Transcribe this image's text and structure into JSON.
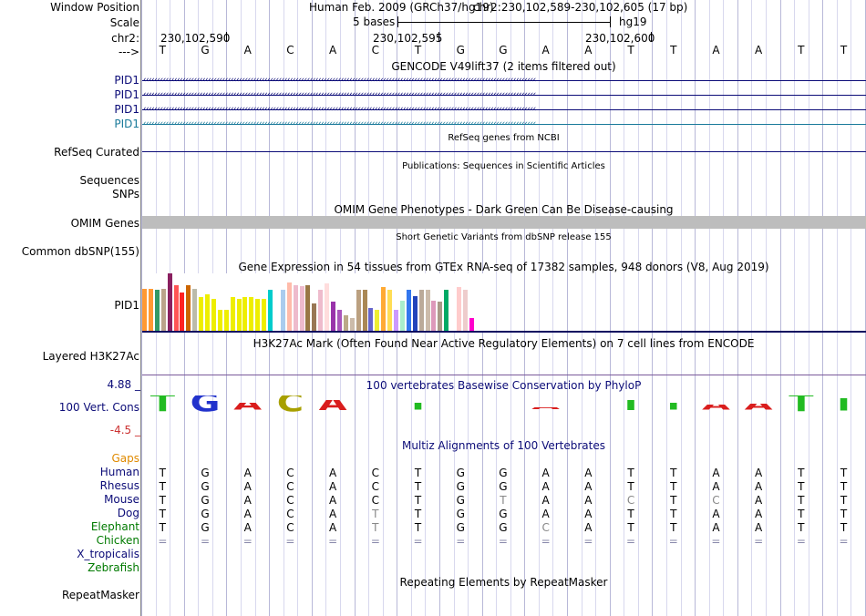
{
  "header": {
    "labels": {
      "window_position": "Window Position",
      "scale": "Scale",
      "chrom": "chr2:",
      "strand_arrow": "--->"
    },
    "assembly": "Human Feb. 2009 (GRCh37/hg19)",
    "position": "chr2:230,102,589-230,102,605 (17 bp)",
    "scale_text": "5 bases",
    "db": "hg19",
    "coords": [
      "230,102,590",
      "230,102,595",
      "230,102,600"
    ]
  },
  "sequence": [
    "T",
    "G",
    "A",
    "C",
    "A",
    "C",
    "T",
    "G",
    "G",
    "A",
    "A",
    "T",
    "T",
    "A",
    "A",
    "T",
    "T"
  ],
  "gencode": {
    "title": "GENCODE V49lift37 (2 items filtered out)",
    "items": [
      {
        "label": "PID1",
        "color": "#0c0c78"
      },
      {
        "label": "PID1",
        "color": "#0c0c78"
      },
      {
        "label": "PID1",
        "color": "#0c0c78"
      },
      {
        "label": "PID1",
        "color": "#1a7a9a"
      }
    ]
  },
  "refseq": {
    "center": "RefSeq genes from NCBI",
    "label": "RefSeq Curated",
    "color": "#0c0c78"
  },
  "publications": {
    "center": "Publications: Sequences in Scientific Articles",
    "label1": "Sequences",
    "label2": "SNPs"
  },
  "omim": {
    "title": "OMIM Gene Phenotypes - Dark Green Can Be Disease-causing",
    "label": "OMIM Genes",
    "color": "#007a00"
  },
  "dbsnp": {
    "center": "Short Genetic Variants from dbSNP release 155",
    "label": "Common dbSNP(155)"
  },
  "gtex": {
    "title": "Gene Expression in 54 tissues from GTEx RNA-seq of 17382 samples, 948 donors (V8, Aug 2019)",
    "label": "PID1",
    "bars": [
      {
        "v": 0.73,
        "c": "#ff9933"
      },
      {
        "v": 0.73,
        "c": "#ff9933"
      },
      {
        "v": 0.71,
        "c": "#339966"
      },
      {
        "v": 0.73,
        "c": "#bba38a"
      },
      {
        "v": 1.0,
        "c": "#8a2060"
      },
      {
        "v": 0.8,
        "c": "#ff5555"
      },
      {
        "v": 0.67,
        "c": "#ff2222"
      },
      {
        "v": 0.8,
        "c": "#cc6600"
      },
      {
        "v": 0.73,
        "c": "#bbbbaa"
      },
      {
        "v": 0.59,
        "c": "#eeee00"
      },
      {
        "v": 0.63,
        "c": "#eeee00"
      },
      {
        "v": 0.56,
        "c": "#eeee00"
      },
      {
        "v": 0.36,
        "c": "#eeee00"
      },
      {
        "v": 0.36,
        "c": "#eeee00"
      },
      {
        "v": 0.59,
        "c": "#eeee00"
      },
      {
        "v": 0.56,
        "c": "#eeee00"
      },
      {
        "v": 0.59,
        "c": "#eeee00"
      },
      {
        "v": 0.59,
        "c": "#eeee00"
      },
      {
        "v": 0.56,
        "c": "#eeee00"
      },
      {
        "v": 0.56,
        "c": "#eeee00"
      },
      {
        "v": 0.71,
        "c": "#00cccc"
      },
      {
        "v": 0.0,
        "c": "#ffffff"
      },
      {
        "v": 0.71,
        "c": "#aaccee"
      },
      {
        "v": 0.84,
        "c": "#ffbbaa"
      },
      {
        "v": 0.8,
        "c": "#eebbcc"
      },
      {
        "v": 0.78,
        "c": "#eebbcc"
      },
      {
        "v": 0.8,
        "c": "#997744"
      },
      {
        "v": 0.47,
        "c": "#997755"
      },
      {
        "v": 0.71,
        "c": "#eebbcc"
      },
      {
        "v": 0.82,
        "c": "#ffdddd"
      },
      {
        "v": 0.5,
        "c": "#9933aa"
      },
      {
        "v": 0.36,
        "c": "#aa55bb"
      },
      {
        "v": 0.27,
        "c": "#bbaa88"
      },
      {
        "v": 0.22,
        "c": "#ccbbaa"
      },
      {
        "v": 0.71,
        "c": "#bba080"
      },
      {
        "v": 0.71,
        "c": "#aa8855"
      },
      {
        "v": 0.4,
        "c": "#6666cc"
      },
      {
        "v": 0.36,
        "c": "#eeee33"
      },
      {
        "v": 0.76,
        "c": "#ffaa33"
      },
      {
        "v": 0.71,
        "c": "#ffdd55"
      },
      {
        "v": 0.36,
        "c": "#cc99ff"
      },
      {
        "v": 0.53,
        "c": "#aaeecc"
      },
      {
        "v": 0.71,
        "c": "#3377ee"
      },
      {
        "v": 0.6,
        "c": "#2244bb"
      },
      {
        "v": 0.71,
        "c": "#bbaa99"
      },
      {
        "v": 0.71,
        "c": "#ccbbaa"
      },
      {
        "v": 0.53,
        "c": "#dd99bb"
      },
      {
        "v": 0.51,
        "c": "#aa9988"
      },
      {
        "v": 0.71,
        "c": "#00aa66"
      },
      {
        "v": 0.0,
        "c": "#ffffff"
      },
      {
        "v": 0.76,
        "c": "#ffcccc"
      },
      {
        "v": 0.71,
        "c": "#eecccc"
      },
      {
        "v": 0.22,
        "c": "#ff00cc"
      }
    ]
  },
  "h3k27ac": {
    "title": "H3K27Ac Mark (Often Found Near Active Regulatory Elements) on 7 cell lines from ENCODE",
    "label": "Layered H3K27Ac"
  },
  "phylop": {
    "title": "100 vertebrates Basewise Conservation by PhyloP",
    "label": "100 Vert. Cons",
    "max": "4.88 _",
    "min": "-4.5 _",
    "scores": [
      0.9,
      0.9,
      0.55,
      0.9,
      0.7,
      0.08,
      0.55,
      0.12,
      0.15,
      0.3,
      0.06,
      0.7,
      0.55,
      0.45,
      0.5,
      0.9,
      0.75
    ],
    "colors": {
      "A": "#d91d1d",
      "C": "#a8a000",
      "G": "#2233cc",
      "T": "#22bb22"
    }
  },
  "multiz": {
    "title": "Multiz Alignments of 100 Vertebrates",
    "gaps_label": "Gaps",
    "rows": [
      {
        "species": "Human",
        "color": "#0c0c78",
        "bases": [
          "T",
          "G",
          "A",
          "C",
          "A",
          "C",
          "T",
          "G",
          "G",
          "A",
          "A",
          "T",
          "T",
          "A",
          "A",
          "T",
          "T"
        ],
        "dim": []
      },
      {
        "species": "Rhesus",
        "color": "#0c0c78",
        "bases": [
          "T",
          "G",
          "A",
          "C",
          "A",
          "C",
          "T",
          "G",
          "G",
          "A",
          "A",
          "T",
          "T",
          "A",
          "A",
          "T",
          "T"
        ],
        "dim": []
      },
      {
        "species": "Mouse",
        "color": "#0c0c78",
        "bases": [
          "T",
          "G",
          "A",
          "C",
          "A",
          "C",
          "T",
          "G",
          "T",
          "A",
          "A",
          "C",
          "T",
          "C",
          "A",
          "T",
          "T"
        ],
        "dim": [
          8,
          11,
          13
        ]
      },
      {
        "species": "Dog",
        "color": "#0c0c78",
        "bases": [
          "T",
          "G",
          "A",
          "C",
          "A",
          "T",
          "T",
          "G",
          "G",
          "A",
          "A",
          "T",
          "T",
          "A",
          "A",
          "T",
          "T"
        ],
        "dim": [
          5
        ]
      },
      {
        "species": "Elephant",
        "color": "#007a00",
        "bases": [
          "T",
          "G",
          "A",
          "C",
          "A",
          "T",
          "T",
          "G",
          "G",
          "C",
          "A",
          "T",
          "T",
          "A",
          "A",
          "T",
          "T"
        ],
        "dim": [
          5,
          9
        ]
      },
      {
        "species": "Chicken",
        "color": "#007a00",
        "bases": [
          "=",
          "=",
          "=",
          "=",
          "=",
          "=",
          "=",
          "=",
          "=",
          "=",
          "=",
          "=",
          "=",
          "=",
          "=",
          "=",
          "="
        ],
        "dim": [
          0,
          1,
          2,
          3,
          4,
          5,
          6,
          7,
          8,
          9,
          10,
          11,
          12,
          13,
          14,
          15,
          16
        ]
      },
      {
        "species": "X_tropicalis",
        "color": "#0c0c78",
        "bases": [],
        "dim": []
      },
      {
        "species": "Zebrafish",
        "color": "#007a00",
        "bases": [],
        "dim": []
      }
    ]
  },
  "repeatmasker": {
    "title": "Repeating Elements by RepeatMasker",
    "label": "RepeatMasker"
  },
  "glyphs": {
    "arrow": "‹",
    "diamond": "◆"
  }
}
